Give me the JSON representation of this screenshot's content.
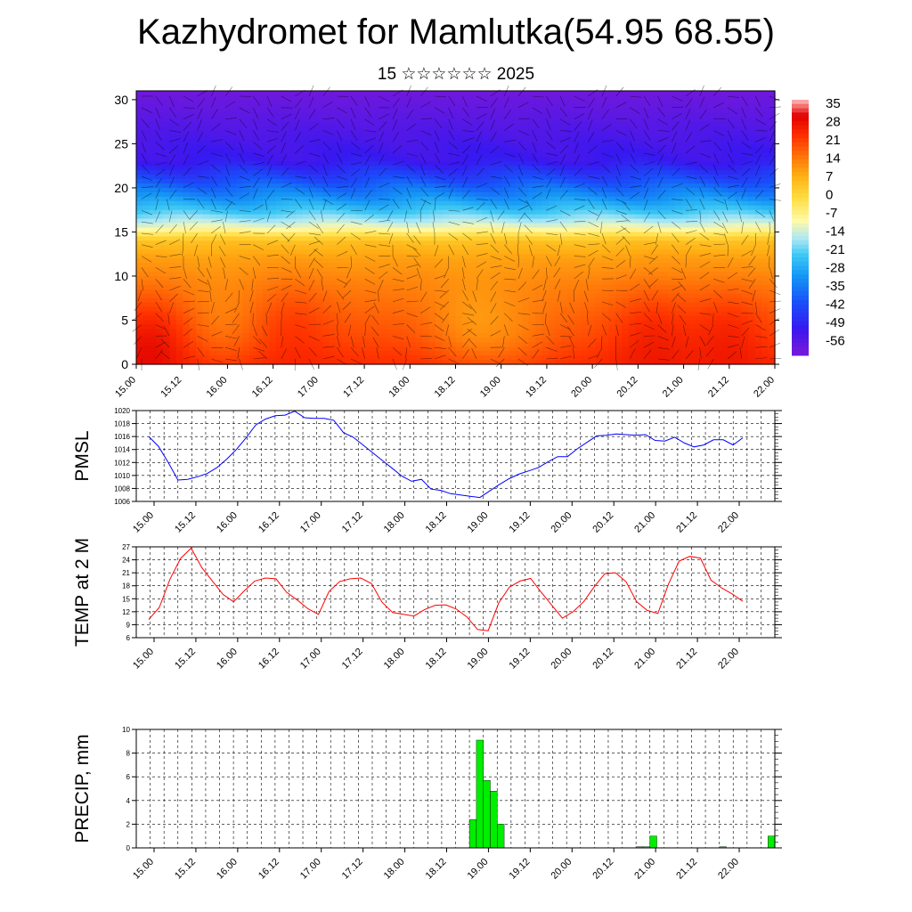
{
  "title": "Kazhydromet for Mamlutka(54.95 68.55)",
  "subtitle": "15 ☆☆☆☆☆☆ 2025",
  "x_ticks": [
    "15.00",
    "15.12",
    "16.00",
    "16.12",
    "17.00",
    "17.12",
    "18.00",
    "18.12",
    "19.00",
    "19.12",
    "20.00",
    "20.12",
    "21.00",
    "21.12",
    "22.00"
  ],
  "chart_data": [
    {
      "type": "heatmap",
      "title": "",
      "ylabel": "",
      "x": [
        "15.00",
        "15.12",
        "16.00",
        "16.12",
        "17.00",
        "17.12",
        "18.00",
        "18.12",
        "19.00",
        "19.12",
        "20.00",
        "20.12",
        "21.00",
        "21.12",
        "22.00"
      ],
      "ylim": [
        0,
        31
      ],
      "y_ticks": [
        0,
        5,
        10,
        15,
        20,
        25,
        30
      ],
      "colorbar_levels": [
        35,
        28,
        21,
        14,
        7,
        0,
        -7,
        -14,
        -21,
        -28,
        -35,
        -42,
        -49,
        -56
      ],
      "overlay": "wind vectors",
      "profile": [
        {
          "y": 0,
          "value": 22
        },
        {
          "y": 3,
          "value": 18
        },
        {
          "y": 6,
          "value": 15
        },
        {
          "y": 9,
          "value": 12
        },
        {
          "y": 12,
          "value": 8
        },
        {
          "y": 14,
          "value": 3
        },
        {
          "y": 15.5,
          "value": -12
        },
        {
          "y": 17,
          "value": -22
        },
        {
          "y": 19,
          "value": -33
        },
        {
          "y": 21,
          "value": -43
        },
        {
          "y": 23,
          "value": -52
        },
        {
          "y": 25,
          "value": -54
        },
        {
          "y": 27,
          "value": -56
        },
        {
          "y": 31,
          "value": -60
        }
      ],
      "warm_cores": [
        {
          "x": 0.3,
          "y": 3,
          "delta": 8
        },
        {
          "x": 1.9,
          "y": 4,
          "delta": -4
        },
        {
          "x": 3.4,
          "y": 5,
          "delta": 4
        },
        {
          "x": 7.3,
          "y": 4,
          "delta": -6
        },
        {
          "x": 8.3,
          "y": 3,
          "delta": -4
        },
        {
          "x": 11.3,
          "y": 4,
          "delta": 6
        },
        {
          "x": 13.0,
          "y": 4,
          "delta": 6
        }
      ]
    },
    {
      "type": "line",
      "ylabel": "PMSL",
      "ylim": [
        1006,
        1020
      ],
      "y_ticks": [
        1006,
        1008,
        1010,
        1012,
        1014,
        1016,
        1018,
        1020
      ],
      "series": [
        {
          "color": "#0000ff",
          "values": [
            1016,
            1014.5,
            1012,
            1009.3,
            1009.4,
            1009.8,
            1010.3,
            1011.2,
            1012.5,
            1014,
            1015.8,
            1017.8,
            1018.7,
            1019.2,
            1019.3,
            1019.9,
            1018.9,
            1018.8,
            1018.8,
            1018.5,
            1016.6,
            1015.9,
            1014.7,
            1013.5,
            1012.3,
            1011.1,
            1009.9,
            1009.1,
            1009.4,
            1007.9,
            1007.7,
            1007.2,
            1007.0,
            1006.8,
            1006.6,
            1007.6,
            1008.6,
            1009.5,
            1010.2,
            1010.7,
            1011.2,
            1012.1,
            1012.9,
            1012.9,
            1014.1,
            1015.1,
            1016.1,
            1016.2,
            1016.4,
            1016.3,
            1016.2,
            1016.3,
            1015.4,
            1015.3,
            1015.9,
            1015.0,
            1014.4,
            1014.7,
            1015.5,
            1015.5,
            1014.7,
            1015.8
          ]
        }
      ]
    },
    {
      "type": "line",
      "ylabel": "TEMP at 2 M",
      "ylim": [
        6,
        27
      ],
      "y_ticks": [
        6,
        9,
        12,
        15,
        18,
        21,
        24,
        27
      ],
      "series": [
        {
          "color": "#ff0000",
          "values": [
            10.2,
            13,
            19.5,
            24.3,
            26.7,
            22.2,
            19.1,
            16.0,
            14.3,
            16.8,
            19.1,
            19.8,
            19.6,
            16.5,
            14.7,
            12.7,
            11.4,
            16.7,
            19.0,
            19.6,
            19.8,
            18.5,
            14.2,
            11.8,
            11.4,
            11.0,
            12.5,
            13.5,
            13.6,
            12.6,
            10.8,
            7.9,
            7.6,
            14.1,
            17.7,
            19.1,
            19.7,
            16.5,
            13.5,
            10.5,
            12.0,
            14.3,
            17.8,
            20.8,
            21.0,
            18.9,
            14.3,
            12.3,
            11.6,
            18.4,
            23.7,
            24.8,
            24.4,
            19.3,
            17.5,
            16.1,
            14.4
          ]
        }
      ]
    },
    {
      "type": "bar",
      "ylabel": "PRECIP, mm",
      "ylim": [
        0,
        10
      ],
      "y_ticks": [
        0,
        2,
        4,
        6,
        8,
        10
      ],
      "color": "#00ee00",
      "series": [
        {
          "values": [
            0,
            0,
            0,
            0,
            0,
            0,
            0,
            0,
            0,
            0,
            0,
            0,
            0,
            0,
            0,
            0,
            0,
            0,
            0,
            0,
            0,
            0,
            0,
            0,
            0,
            0,
            0,
            0,
            0,
            0,
            0,
            0,
            0,
            0,
            0,
            0,
            0,
            0,
            0,
            0,
            0,
            0,
            0,
            0,
            0,
            0,
            0,
            0,
            2.4,
            9.1,
            5.7,
            4.8,
            2.0,
            0,
            0,
            0,
            0,
            0,
            0,
            0,
            0,
            0,
            0,
            0,
            0,
            0,
            0,
            0,
            0,
            0,
            0,
            0,
            0.1,
            0.1,
            1.0,
            0,
            0,
            0,
            0,
            0,
            0,
            0,
            0,
            0,
            0.1,
            0,
            0,
            0,
            0,
            0,
            0,
            1.0
          ]
        }
      ]
    }
  ]
}
